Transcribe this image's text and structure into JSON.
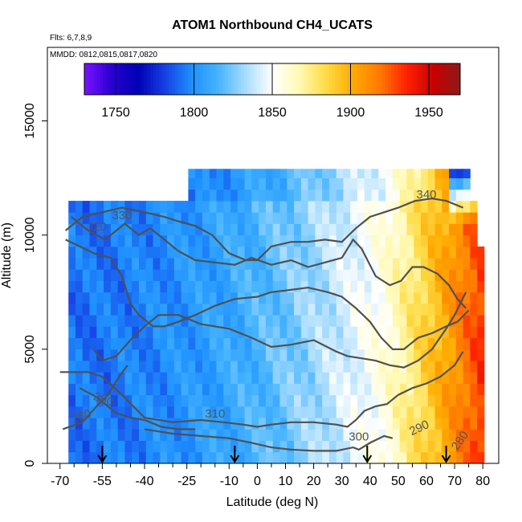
{
  "chart_data": {
    "type": "heatmap",
    "title": "ATOM1 Northbound CH4_UCATS",
    "subtitle_lines": [
      "Flts: 6,7,8,9",
      "MMDD: 0812,0815,0817,0820"
    ],
    "xlabel": "Latitude (deg N)",
    "ylabel": "Altitude (m)",
    "xlim": [
      -70,
      80
    ],
    "ylim": [
      0,
      18000
    ],
    "x_ticks": [
      -70,
      -55,
      -40,
      -25,
      -10,
      0,
      10,
      20,
      30,
      40,
      50,
      60,
      70,
      80
    ],
    "x_tick_labels": [
      "-70",
      "-55",
      "-40",
      "-25",
      "-10",
      "0",
      "10",
      "20",
      "30",
      "40",
      "50",
      "60",
      "70",
      "80"
    ],
    "y_ticks": [
      0,
      5000,
      10000,
      15000
    ],
    "y_tick_labels": [
      "0",
      "5000",
      "10000",
      "15000"
    ],
    "colorbar": {
      "range": [
        1730,
        1970
      ],
      "ticks": [
        1750,
        1800,
        1850,
        1900,
        1950
      ],
      "tick_labels": [
        "1750",
        "1800",
        "1850",
        "1900",
        "1950"
      ],
      "colors": [
        "#7a12ff",
        "#2a00d4",
        "#0000b4",
        "#1640e4",
        "#1e90ff",
        "#46b4ff",
        "#a8dcff",
        "#ffffff",
        "#fffab4",
        "#ffdc46",
        "#ffaa00",
        "#ff7a00",
        "#ff2200",
        "#c80000",
        "#8c1a1a"
      ]
    },
    "flight_markers_lat": [
      -55,
      -8,
      39,
      67
    ],
    "contours": [
      {
        "label": "280",
        "points": [
          [
            -69,
            1500
          ],
          [
            -62,
            1800
          ],
          [
            -57,
            2500
          ],
          [
            -53,
            3000
          ],
          [
            -49,
            3800
          ],
          [
            -46,
            4300
          ]
        ]
      },
      {
        "label": "290",
        "points": [
          [
            -63,
            3300
          ],
          [
            -57,
            2900
          ],
          [
            -54,
            2600
          ],
          [
            -50,
            2200
          ],
          [
            -45,
            2000
          ],
          [
            -40,
            1900
          ],
          [
            -34,
            1600
          ],
          [
            -28,
            1500
          ],
          [
            -22,
            1500
          ]
        ]
      },
      {
        "label": "300",
        "points": [
          [
            -40,
            1500
          ],
          [
            -30,
            1300
          ],
          [
            -20,
            1200
          ],
          [
            -10,
            1100
          ],
          [
            -2,
            900
          ],
          [
            5,
            700
          ],
          [
            12,
            600
          ],
          [
            20,
            550
          ],
          [
            28,
            550
          ],
          [
            34,
            700
          ],
          [
            36,
            600
          ],
          [
            40,
            900
          ],
          [
            45,
            1200
          ],
          [
            48,
            1100
          ]
        ]
      },
      {
        "label": "310",
        "points": [
          [
            -70,
            4000
          ],
          [
            -60,
            4000
          ],
          [
            -55,
            3800
          ],
          [
            -48,
            3000
          ],
          [
            -40,
            2000
          ],
          [
            -30,
            1800
          ],
          [
            -20,
            1900
          ],
          [
            -12,
            1800
          ],
          [
            -5,
            1700
          ],
          [
            0,
            1600
          ],
          [
            5,
            1700
          ],
          [
            12,
            1800
          ],
          [
            20,
            1800
          ],
          [
            28,
            1700
          ],
          [
            32,
            1600
          ],
          [
            35,
            1900
          ],
          [
            38,
            2300
          ],
          [
            42,
            2500
          ],
          [
            46,
            2600
          ],
          [
            50,
            3000
          ],
          [
            55,
            3300
          ],
          [
            60,
            3500
          ],
          [
            65,
            3800
          ],
          [
            70,
            4300
          ],
          [
            73,
            4900
          ]
        ]
      },
      {
        "label": "",
        "points": [
          [
            -58,
            5000
          ],
          [
            -55,
            4500
          ],
          [
            -50,
            4700
          ],
          [
            -45,
            5400
          ],
          [
            -40,
            6000
          ],
          [
            -35,
            6500
          ],
          [
            -28,
            6500
          ],
          [
            -20,
            6100
          ],
          [
            -10,
            5900
          ],
          [
            -2,
            5500
          ],
          [
            5,
            5100
          ],
          [
            12,
            5200
          ],
          [
            20,
            5400
          ],
          [
            28,
            4900
          ],
          [
            32,
            4700
          ],
          [
            37,
            4600
          ],
          [
            42,
            4500
          ],
          [
            47,
            4300
          ],
          [
            52,
            4200
          ],
          [
            57,
            4500
          ],
          [
            62,
            5000
          ],
          [
            67,
            5900
          ],
          [
            70,
            6500
          ],
          [
            72,
            7000
          ],
          [
            74,
            7500
          ]
        ]
      },
      {
        "label": "320",
        "points": [
          [
            -68,
            9800
          ],
          [
            -63,
            9500
          ],
          [
            -58,
            9200
          ],
          [
            -52,
            9000
          ],
          [
            -48,
            8200
          ],
          [
            -45,
            7000
          ],
          [
            -42,
            6500
          ],
          [
            -37,
            6000
          ],
          [
            -33,
            6000
          ],
          [
            -28,
            6200
          ],
          [
            -22,
            6500
          ],
          [
            -15,
            6900
          ],
          [
            -8,
            7200
          ],
          [
            0,
            7300
          ],
          [
            5,
            7500
          ],
          [
            12,
            7600
          ],
          [
            18,
            7700
          ],
          [
            25,
            7500
          ],
          [
            30,
            7300
          ],
          [
            35,
            6800
          ],
          [
            40,
            6200
          ],
          [
            44,
            5500
          ],
          [
            48,
            5000
          ],
          [
            52,
            5000
          ],
          [
            57,
            5500
          ],
          [
            62,
            5700
          ],
          [
            67,
            6000
          ],
          [
            71,
            6200
          ],
          [
            75,
            6700
          ]
        ]
      },
      {
        "label": "330",
        "points": [
          [
            -66,
            10800
          ],
          [
            -60,
            10200
          ],
          [
            -54,
            9800
          ],
          [
            -47,
            10500
          ],
          [
            -42,
            10000
          ],
          [
            -38,
            10300
          ],
          [
            -35,
            10000
          ],
          [
            -28,
            9300
          ],
          [
            -22,
            8900
          ],
          [
            -15,
            8800
          ],
          [
            -8,
            8700
          ],
          [
            -2,
            9000
          ],
          [
            5,
            8700
          ],
          [
            12,
            8900
          ],
          [
            18,
            8600
          ],
          [
            24,
            8800
          ],
          [
            30,
            9000
          ],
          [
            34,
            9800
          ],
          [
            37,
            9400
          ],
          [
            42,
            8200
          ],
          [
            47,
            7800
          ],
          [
            51,
            8000
          ],
          [
            55,
            8600
          ],
          [
            59,
            8600
          ],
          [
            64,
            8300
          ],
          [
            68,
            7800
          ],
          [
            71,
            7200
          ],
          [
            74,
            6800
          ]
        ]
      },
      {
        "label": "340",
        "points": [
          [
            -68,
            10200
          ],
          [
            -62,
            10800
          ],
          [
            -55,
            11000
          ],
          [
            -48,
            11200
          ],
          [
            -40,
            11000
          ],
          [
            -33,
            10800
          ],
          [
            -28,
            10600
          ],
          [
            -22,
            10400
          ],
          [
            -16,
            10000
          ],
          [
            -10,
            9200
          ],
          [
            -4,
            8900
          ],
          [
            0,
            8900
          ],
          [
            5,
            9500
          ],
          [
            12,
            9700
          ],
          [
            18,
            9700
          ],
          [
            24,
            9800
          ],
          [
            30,
            9700
          ],
          [
            35,
            10300
          ],
          [
            40,
            10800
          ],
          [
            45,
            11000
          ],
          [
            50,
            11200
          ],
          [
            56,
            11500
          ],
          [
            62,
            11600
          ],
          [
            67,
            11500
          ],
          [
            73,
            11200
          ]
        ]
      }
    ]
  }
}
